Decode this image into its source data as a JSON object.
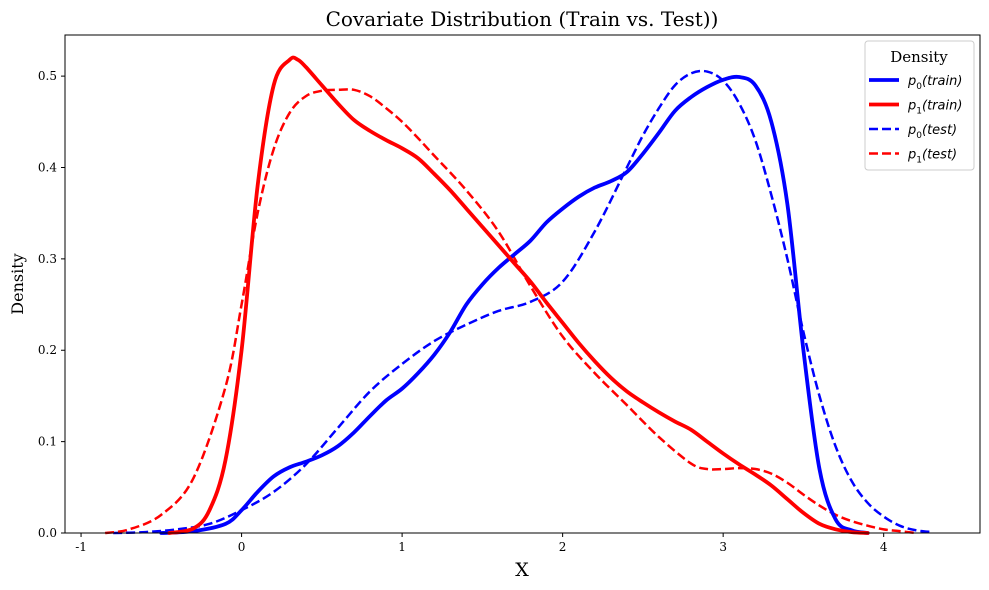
{
  "chart_data": {
    "type": "line",
    "title": "Covariate Distribution (Train vs. Test))",
    "xlabel": "X",
    "ylabel": "Density",
    "xlim": [
      -1.1,
      4.6
    ],
    "ylim": [
      0,
      0.545
    ],
    "xticks": [
      "-1",
      "0",
      "1",
      "2",
      "3",
      "4"
    ],
    "yticks": [
      "0.0",
      "0.1",
      "0.2",
      "0.3",
      "0.4",
      "0.5"
    ],
    "legend": {
      "title": "Density",
      "placement": "top-right"
    },
    "series": [
      {
        "name": "p0(train)",
        "label_main": "p",
        "label_sub": "0",
        "label_arg": "(train)",
        "color": "#0000ff",
        "style": "solid",
        "x": [
          -0.5,
          -0.3,
          -0.1,
          0.0,
          0.1,
          0.2,
          0.3,
          0.4,
          0.5,
          0.6,
          0.7,
          0.8,
          0.9,
          1.0,
          1.1,
          1.2,
          1.3,
          1.4,
          1.5,
          1.6,
          1.7,
          1.8,
          1.9,
          2.0,
          2.1,
          2.2,
          2.3,
          2.4,
          2.5,
          2.6,
          2.7,
          2.8,
          2.9,
          3.0,
          3.1,
          3.2,
          3.3,
          3.4,
          3.5,
          3.6,
          3.7,
          3.8,
          3.9
        ],
        "y": [
          0.0,
          0.002,
          0.01,
          0.025,
          0.045,
          0.062,
          0.072,
          0.078,
          0.085,
          0.095,
          0.11,
          0.128,
          0.145,
          0.158,
          0.175,
          0.195,
          0.22,
          0.25,
          0.272,
          0.29,
          0.305,
          0.32,
          0.34,
          0.355,
          0.368,
          0.378,
          0.385,
          0.395,
          0.415,
          0.438,
          0.462,
          0.477,
          0.488,
          0.496,
          0.499,
          0.49,
          0.45,
          0.36,
          0.2,
          0.07,
          0.015,
          0.003,
          0.0
        ]
      },
      {
        "name": "p1(train)",
        "label_main": "p",
        "label_sub": "1",
        "label_arg": "(train)",
        "color": "#ff0000",
        "style": "solid",
        "x": [
          -0.45,
          -0.3,
          -0.2,
          -0.1,
          0.0,
          0.1,
          0.2,
          0.3,
          0.35,
          0.4,
          0.5,
          0.6,
          0.7,
          0.8,
          0.9,
          1.0,
          1.1,
          1.2,
          1.3,
          1.4,
          1.5,
          1.6,
          1.7,
          1.8,
          1.9,
          2.0,
          2.1,
          2.2,
          2.3,
          2.4,
          2.5,
          2.6,
          2.7,
          2.8,
          2.9,
          3.0,
          3.1,
          3.2,
          3.3,
          3.4,
          3.5,
          3.6,
          3.7,
          3.8,
          3.9
        ],
        "y": [
          0.0,
          0.005,
          0.025,
          0.08,
          0.2,
          0.38,
          0.49,
          0.518,
          0.518,
          0.51,
          0.49,
          0.47,
          0.452,
          0.44,
          0.43,
          0.421,
          0.41,
          0.393,
          0.375,
          0.355,
          0.335,
          0.315,
          0.295,
          0.275,
          0.252,
          0.23,
          0.208,
          0.188,
          0.17,
          0.155,
          0.143,
          0.132,
          0.122,
          0.113,
          0.1,
          0.087,
          0.075,
          0.064,
          0.052,
          0.037,
          0.022,
          0.01,
          0.004,
          0.001,
          0.0
        ]
      },
      {
        "name": "p0(test)",
        "label_main": "p",
        "label_sub": "0",
        "label_arg": "(test)",
        "color": "#0000ff",
        "style": "dashed",
        "x": [
          -0.8,
          -0.6,
          -0.4,
          -0.2,
          0.0,
          0.2,
          0.4,
          0.6,
          0.8,
          1.0,
          1.2,
          1.4,
          1.6,
          1.8,
          2.0,
          2.2,
          2.4,
          2.5,
          2.6,
          2.7,
          2.8,
          2.9,
          3.0,
          3.1,
          3.2,
          3.3,
          3.4,
          3.5,
          3.6,
          3.7,
          3.8,
          3.9,
          4.0,
          4.1,
          4.2,
          4.3
        ],
        "y": [
          0.0,
          0.001,
          0.004,
          0.01,
          0.025,
          0.045,
          0.075,
          0.115,
          0.155,
          0.185,
          0.21,
          0.228,
          0.243,
          0.253,
          0.275,
          0.33,
          0.4,
          0.435,
          0.465,
          0.49,
          0.503,
          0.505,
          0.495,
          0.47,
          0.43,
          0.37,
          0.3,
          0.22,
          0.15,
          0.095,
          0.057,
          0.033,
          0.018,
          0.008,
          0.003,
          0.001
        ]
      },
      {
        "name": "p1(test)",
        "label_main": "p",
        "label_sub": "1",
        "label_arg": "(test)",
        "color": "#ff0000",
        "style": "dashed",
        "x": [
          -0.85,
          -0.7,
          -0.5,
          -0.3,
          -0.1,
          0.0,
          0.1,
          0.2,
          0.3,
          0.4,
          0.5,
          0.6,
          0.7,
          0.8,
          0.9,
          1.0,
          1.1,
          1.2,
          1.4,
          1.6,
          1.8,
          2.0,
          2.2,
          2.4,
          2.6,
          2.8,
          2.9,
          3.0,
          3.1,
          3.2,
          3.3,
          3.4,
          3.5,
          3.6,
          3.7,
          3.8,
          3.9,
          4.0,
          4.1,
          4.2
        ],
        "y": [
          0.0,
          0.004,
          0.02,
          0.06,
          0.16,
          0.25,
          0.35,
          0.42,
          0.46,
          0.478,
          0.484,
          0.485,
          0.485,
          0.478,
          0.465,
          0.45,
          0.432,
          0.413,
          0.375,
          0.33,
          0.27,
          0.215,
          0.175,
          0.14,
          0.105,
          0.076,
          0.07,
          0.07,
          0.071,
          0.07,
          0.065,
          0.055,
          0.042,
          0.03,
          0.02,
          0.013,
          0.008,
          0.004,
          0.002,
          0.0
        ]
      }
    ]
  }
}
